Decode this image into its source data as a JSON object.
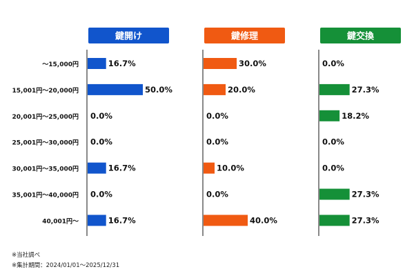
{
  "chart_data": {
    "type": "bar",
    "orientation": "horizontal",
    "categories": [
      "～15,000円",
      "15,001円～20,000円",
      "20,001円～25,000円",
      "25,001円～30,000円",
      "30,001円～35,000円",
      "35,001円～40,000円",
      "40,001円～"
    ],
    "series": [
      {
        "name": "鍵開け",
        "color": "#1155cc",
        "values": [
          16.7,
          50.0,
          0.0,
          0.0,
          16.7,
          0.0,
          16.7
        ],
        "labels": [
          "16.7%",
          "50.0%",
          "0.0%",
          "0.0%",
          "16.7%",
          "0.0%",
          "16.7%"
        ]
      },
      {
        "name": "鍵修理",
        "color": "#f05a12",
        "values": [
          30.0,
          20.0,
          0.0,
          0.0,
          10.0,
          0.0,
          40.0
        ],
        "labels": [
          "30.0%",
          "20.0%",
          "0.0%",
          "0.0%",
          "10.0%",
          "0.0%",
          "40.0%"
        ]
      },
      {
        "name": "鍵交換",
        "color": "#159038",
        "values": [
          0.0,
          27.3,
          18.2,
          0.0,
          0.0,
          27.3,
          27.3
        ],
        "labels": [
          "0.0%",
          "27.3%",
          "18.2%",
          "0.0%",
          "0.0%",
          "27.3%",
          "27.3%"
        ]
      }
    ],
    "unit": "%",
    "xlim": [
      0,
      50
    ],
    "grid": false,
    "legend": "none"
  },
  "notes": [
    "※当社調べ",
    "※集計期間：2024/01/01～2025/12/31"
  ]
}
